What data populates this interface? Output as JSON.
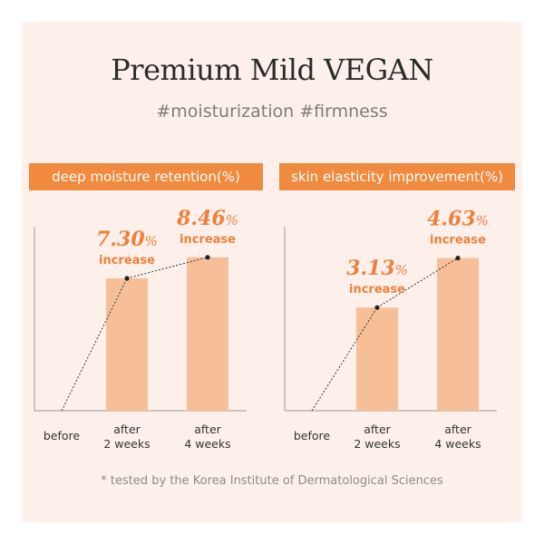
{
  "header": {
    "title": "Premium Mild VEGAN",
    "hashtags": "#moisturization #firmness"
  },
  "footnote": "* tested by the Korea Institute of Dermatological Sciences",
  "colors": {
    "background": "#fdf0ea",
    "accent": "#f08a3e",
    "bar": "#f7bf98",
    "axis": "#9a9a9a",
    "value_text": "#ef7f3a"
  },
  "chart_data": [
    {
      "type": "bar",
      "title": "deep moisture retention(%)",
      "categories": [
        "before",
        "after\n2 weeks",
        "after\n4 weeks"
      ],
      "values": [
        0,
        7.3,
        8.46
      ],
      "value_labels": [
        "",
        "7.30",
        "8.46"
      ],
      "value_unit": "%",
      "value_caption": "increase",
      "trend_line": "dotted",
      "ylim": [
        0,
        10
      ]
    },
    {
      "type": "bar",
      "title": "skin elasticity improvement(%)",
      "categories": [
        "before",
        "after\n2 weeks",
        "after\n4 weeks"
      ],
      "values": [
        0,
        3.13,
        4.63
      ],
      "value_labels": [
        "",
        "3.13",
        "4.63"
      ],
      "value_unit": "%",
      "value_caption": "increase",
      "trend_line": "dotted",
      "ylim": [
        0,
        5.5
      ]
    }
  ]
}
